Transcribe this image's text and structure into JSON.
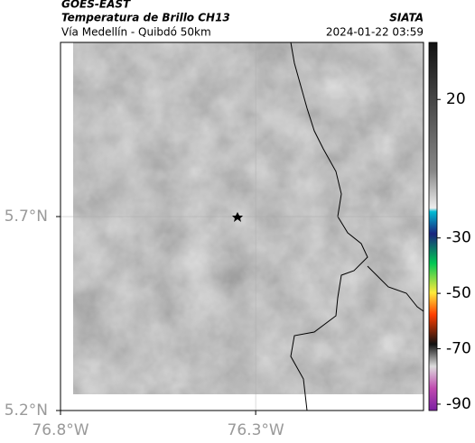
{
  "header": {
    "title": "GOES-EAST",
    "subtitle": "Temperatura de Brillo CH13",
    "route": "Vía Medellín - Quibdó 50km",
    "source": "SIATA",
    "datetime": "2024-01-22 03:59"
  },
  "map": {
    "xlim": [
      -76.8,
      -75.87
    ],
    "ylim": [
      5.2,
      6.149
    ],
    "xticks": [
      {
        "value": -76.8,
        "label": "76.8°W"
      },
      {
        "value": -76.3,
        "label": "76.3°W"
      }
    ],
    "yticks": [
      {
        "value": 5.7,
        "label": "5.7°N"
      },
      {
        "value": 5.2,
        "label": "5.2°N"
      }
    ]
  },
  "colorbar": {
    "lim": [
      -92.3,
      40.6
    ],
    "ticks": [
      20,
      -30,
      -50,
      -70,
      -90
    ]
  }
}
